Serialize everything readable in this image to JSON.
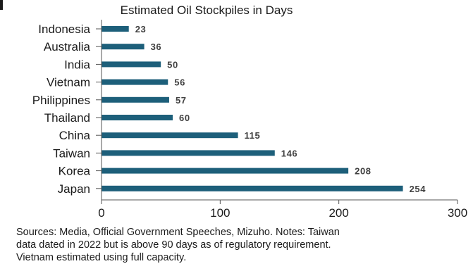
{
  "chart_data": {
    "type": "bar",
    "orientation": "horizontal",
    "title": "Estimated Oil Stockpiles in Days",
    "xlabel": "",
    "ylabel": "",
    "categories": [
      "Indonesia",
      "Australia",
      "India",
      "Vietnam",
      "Philippines",
      "Thailand",
      "China",
      "Taiwan",
      "Korea",
      "Japan"
    ],
    "values": [
      23,
      36,
      50,
      56,
      57,
      60,
      115,
      146,
      208,
      254
    ],
    "xlim": [
      0,
      300
    ],
    "xticks": [
      0,
      100,
      200,
      300
    ],
    "data_labels": true,
    "grid": false,
    "legend": "none",
    "bar_color": "#1d5f7a"
  },
  "caption": {
    "lines": [
      "Sources: Media, Official Government Speeches, Mizuho. Notes: Taiwan",
      "data dated in 2022 but is above 90 days as of regulatory requirement.",
      "Vietnam estimated using full capacity."
    ]
  }
}
